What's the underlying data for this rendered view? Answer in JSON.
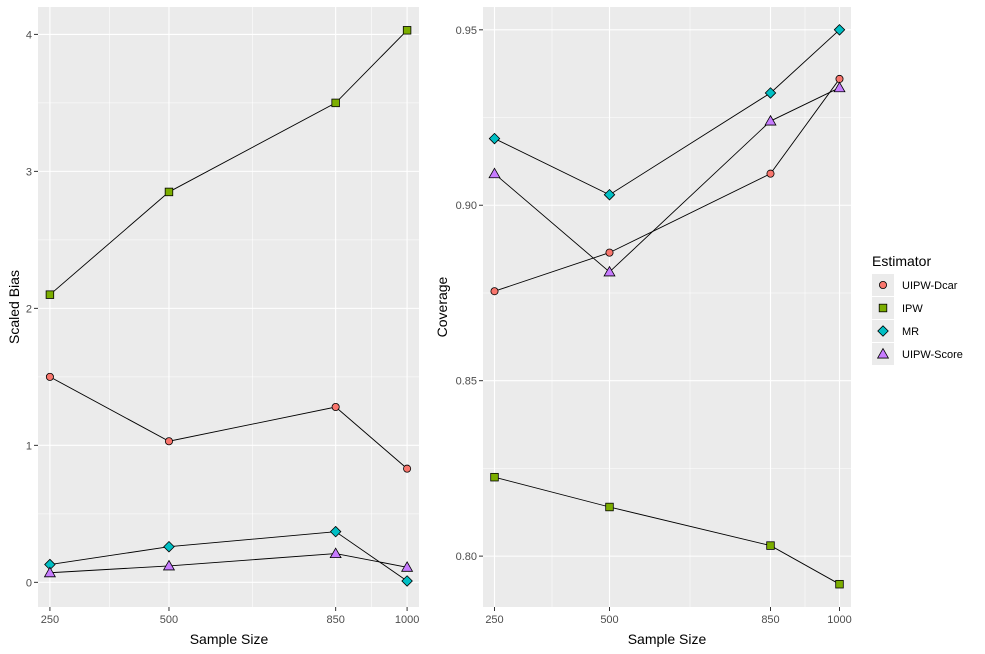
{
  "chart_data": [
    {
      "type": "line",
      "xlabel": "Sample Size",
      "ylabel": "Scaled Bias",
      "x": [
        250,
        500,
        850,
        1000
      ],
      "xlim": [
        225,
        1025
      ],
      "ylim": [
        -0.18,
        4.2
      ],
      "x_ticks": [
        250,
        500,
        850,
        1000
      ],
      "x_tick_labels": [
        "250",
        "500",
        "850",
        "1000"
      ],
      "y_ticks": [
        0,
        1,
        2,
        3,
        4
      ],
      "y_tick_labels": [
        "0",
        "1",
        "2",
        "3",
        "4"
      ],
      "grid": true,
      "series": [
        {
          "name": "UIPW-Dcar",
          "values": [
            1.5,
            1.03,
            1.28,
            0.83
          ]
        },
        {
          "name": "IPW",
          "values": [
            2.1,
            2.85,
            3.5,
            4.03
          ]
        },
        {
          "name": "MR",
          "values": [
            0.13,
            0.26,
            0.37,
            0.01
          ]
        },
        {
          "name": "UIPW-Score",
          "values": [
            0.07,
            0.12,
            0.21,
            0.11
          ]
        }
      ]
    },
    {
      "type": "line",
      "xlabel": "Sample Size",
      "ylabel": "Coverage",
      "x": [
        250,
        500,
        850,
        1000
      ],
      "xlim": [
        225,
        1025
      ],
      "ylim": [
        0.7855,
        0.9565
      ],
      "x_ticks": [
        250,
        500,
        850,
        1000
      ],
      "x_tick_labels": [
        "250",
        "500",
        "850",
        "1000"
      ],
      "y_ticks": [
        0.8,
        0.85,
        0.9,
        0.95
      ],
      "y_tick_labels": [
        "0.80",
        "0.85",
        "0.90",
        "0.95"
      ],
      "grid": true,
      "series": [
        {
          "name": "UIPW-Dcar",
          "values": [
            0.8755,
            0.8865,
            0.909,
            0.936
          ]
        },
        {
          "name": "IPW",
          "values": [
            0.8225,
            0.814,
            0.803,
            0.792
          ]
        },
        {
          "name": "MR",
          "values": [
            0.919,
            0.903,
            0.932,
            0.95
          ]
        },
        {
          "name": "UIPW-Score",
          "values": [
            0.909,
            0.881,
            0.924,
            0.9335
          ]
        }
      ]
    }
  ],
  "legend": {
    "title": "Estimator",
    "position": "right",
    "items": [
      {
        "label": "UIPW-Dcar",
        "color": "#F8766D",
        "shape": "circle"
      },
      {
        "label": "IPW",
        "color": "#7CAE00",
        "shape": "square"
      },
      {
        "label": "MR",
        "color": "#00BFC4",
        "shape": "diamond"
      },
      {
        "label": "UIPW-Score",
        "color": "#C77CFF",
        "shape": "triangle"
      }
    ]
  },
  "colors": {
    "panel_background": "#EBEBEB",
    "grid": "#FFFFFF",
    "line": "#000000",
    "marker_outline": "#000000"
  }
}
